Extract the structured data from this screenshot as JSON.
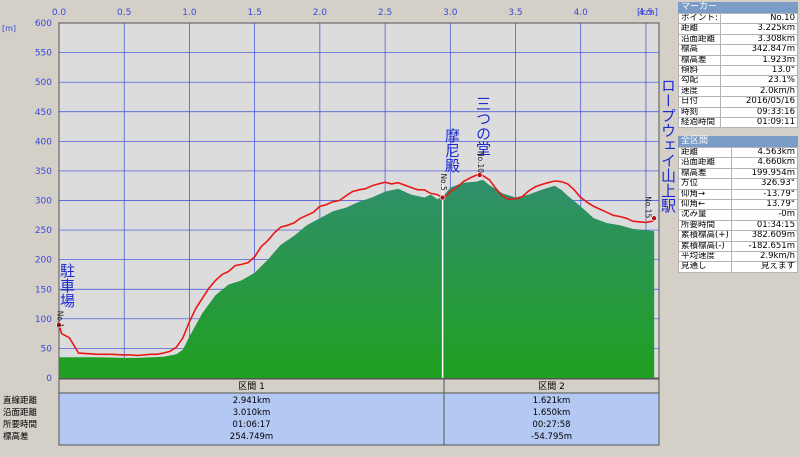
{
  "chart_data": {
    "type": "area",
    "x_unit": "[km]",
    "y_unit": "[m]",
    "xlim": [
      0,
      4.6
    ],
    "ylim": [
      0,
      600
    ],
    "x_ticks": [
      "0.0",
      "0.5",
      "1.0",
      "1.5",
      "2.0",
      "2.5",
      "3.0",
      "3.5",
      "4.0",
      "4.5"
    ],
    "y_ticks": [
      "0",
      "50",
      "100",
      "150",
      "200",
      "250",
      "300",
      "350",
      "400",
      "450",
      "500",
      "550",
      "600"
    ],
    "grid": true,
    "series": [
      {
        "name": "track",
        "color": "#e81818",
        "x": [
          0,
          0.02,
          0.08,
          0.15,
          0.3,
          0.4,
          0.5,
          0.55,
          0.6,
          0.7,
          0.75,
          0.8,
          0.85,
          0.9,
          0.95,
          1.0,
          1.05,
          1.1,
          1.15,
          1.2,
          1.25,
          1.3,
          1.35,
          1.4,
          1.45,
          1.5,
          1.55,
          1.6,
          1.65,
          1.7,
          1.75,
          1.8,
          1.85,
          1.9,
          1.95,
          2.0,
          2.05,
          2.1,
          2.15,
          2.2,
          2.25,
          2.3,
          2.35,
          2.4,
          2.45,
          2.5,
          2.55,
          2.6,
          2.65,
          2.7,
          2.75,
          2.8,
          2.85,
          2.9,
          2.94,
          2.97,
          3.0,
          3.05,
          3.1,
          3.15,
          3.2,
          3.225,
          3.25,
          3.3,
          3.35,
          3.4,
          3.45,
          3.5,
          3.55,
          3.6,
          3.65,
          3.7,
          3.75,
          3.8,
          3.85,
          3.9,
          3.95,
          4.0,
          4.05,
          4.1,
          4.15,
          4.2,
          4.25,
          4.3,
          4.35,
          4.4,
          4.45,
          4.5,
          4.55,
          4.563
        ],
        "y": [
          90,
          75,
          68,
          42,
          40,
          40,
          39,
          39,
          38,
          40,
          40,
          42,
          45,
          52,
          68,
          95,
          118,
          135,
          152,
          165,
          175,
          180,
          190,
          192,
          195,
          205,
          222,
          232,
          245,
          255,
          258,
          262,
          270,
          275,
          280,
          290,
          293,
          298,
          300,
          308,
          315,
          318,
          320,
          325,
          328,
          331,
          328,
          330,
          326,
          322,
          318,
          318,
          312,
          310,
          305,
          308,
          315,
          322,
          332,
          338,
          343,
          345,
          342,
          335,
          320,
          307,
          302,
          303,
          306,
          316,
          323,
          327,
          330,
          333,
          332,
          328,
          318,
          305,
          297,
          290,
          285,
          280,
          275,
          273,
          270,
          265,
          264,
          263,
          265,
          270
        ]
      },
      {
        "name": "terrain",
        "color": "#2f8f6c",
        "x": [
          0,
          0.15,
          0.3,
          0.5,
          0.6,
          0.8,
          0.9,
          0.95,
          1.0,
          1.1,
          1.2,
          1.3,
          1.4,
          1.5,
          1.6,
          1.7,
          1.8,
          1.9,
          2.0,
          2.1,
          2.2,
          2.3,
          2.4,
          2.5,
          2.6,
          2.7,
          2.8,
          2.85,
          2.9,
          2.95,
          3.0,
          3.1,
          3.2,
          3.25,
          3.3,
          3.4,
          3.5,
          3.6,
          3.7,
          3.8,
          3.85,
          3.9,
          4.0,
          4.1,
          4.2,
          4.3,
          4.4,
          4.5,
          4.563
        ],
        "y": [
          35,
          35,
          35,
          34,
          34,
          36,
          40,
          48,
          70,
          110,
          140,
          158,
          165,
          178,
          200,
          225,
          240,
          258,
          270,
          282,
          288,
          298,
          305,
          315,
          320,
          310,
          305,
          310,
          302,
          308,
          322,
          330,
          332,
          335,
          326,
          312,
          305,
          310,
          318,
          325,
          318,
          308,
          290,
          270,
          262,
          258,
          252,
          250,
          248
        ]
      }
    ],
    "annotations": [
      {
        "text": "駐車場",
        "sub": "No.1"
      },
      {
        "text": "摩尼殿",
        "sub": "No.5"
      },
      {
        "text": "三つの堂",
        "sub": "No.10"
      },
      {
        "text": "ロープウェイ山上駅",
        "sub": "No.15"
      }
    ],
    "sections": [
      {
        "label": "区間 1",
        "values": [
          "2.941km",
          "3.010km",
          "01:06:17",
          "254.749m"
        ]
      },
      {
        "label": "区間 2",
        "values": [
          "1.621km",
          "1.650km",
          "00:27:58",
          "-54.795m"
        ]
      }
    ],
    "section_row_labels": [
      "直線距離",
      "沿面距離",
      "所要時間",
      "標高差"
    ]
  },
  "marker": {
    "title": "マーカー",
    "rows": [
      {
        "k": "ポイント:",
        "v": "No.10"
      },
      {
        "k": "距離",
        "v": "3.225km"
      },
      {
        "k": "沿面距離",
        "v": "3.308km"
      },
      {
        "k": "標高",
        "v": "342.847m"
      },
      {
        "k": "標高差",
        "v": "1.923m"
      },
      {
        "k": "傾斜",
        "v": "13.0°"
      },
      {
        "k": "勾配",
        "v": "23.1%"
      },
      {
        "k": "速度",
        "v": "2.0km/h"
      },
      {
        "k": "日付",
        "v": "2016/05/16"
      },
      {
        "k": "時刻",
        "v": "09:33:16"
      },
      {
        "k": "経過時間",
        "v": "01:09:11"
      }
    ]
  },
  "total": {
    "title": "全区間",
    "rows": [
      {
        "k": "距離",
        "v": "4.563km"
      },
      {
        "k": "沿面距離",
        "v": "4.660km"
      },
      {
        "k": "標高差",
        "v": "199.954m"
      },
      {
        "k": "方位",
        "v": "326.93°"
      },
      {
        "k": "仰角→",
        "v": "-13.79°"
      },
      {
        "k": "仰角←",
        "v": "13.79°"
      },
      {
        "k": "沈み量",
        "v": "-0m"
      },
      {
        "k": "所要時間",
        "v": "01:34:15"
      },
      {
        "k": "累積標高(+)",
        "v": "382.609m"
      },
      {
        "k": "累積標高(-)",
        "v": "-182.651m"
      },
      {
        "k": "平均速度",
        "v": "2.9km/h"
      },
      {
        "k": "見通し",
        "v": "見えます"
      }
    ]
  },
  "colors": {
    "plot_bg": "#dcdcdc",
    "grid": "#3a4ad8",
    "terrain_top": "#2f8f6c",
    "terrain_bottom": "#20a020",
    "track": "#e81818",
    "label": "#1a2ad0",
    "table": "#b4c8f4"
  }
}
